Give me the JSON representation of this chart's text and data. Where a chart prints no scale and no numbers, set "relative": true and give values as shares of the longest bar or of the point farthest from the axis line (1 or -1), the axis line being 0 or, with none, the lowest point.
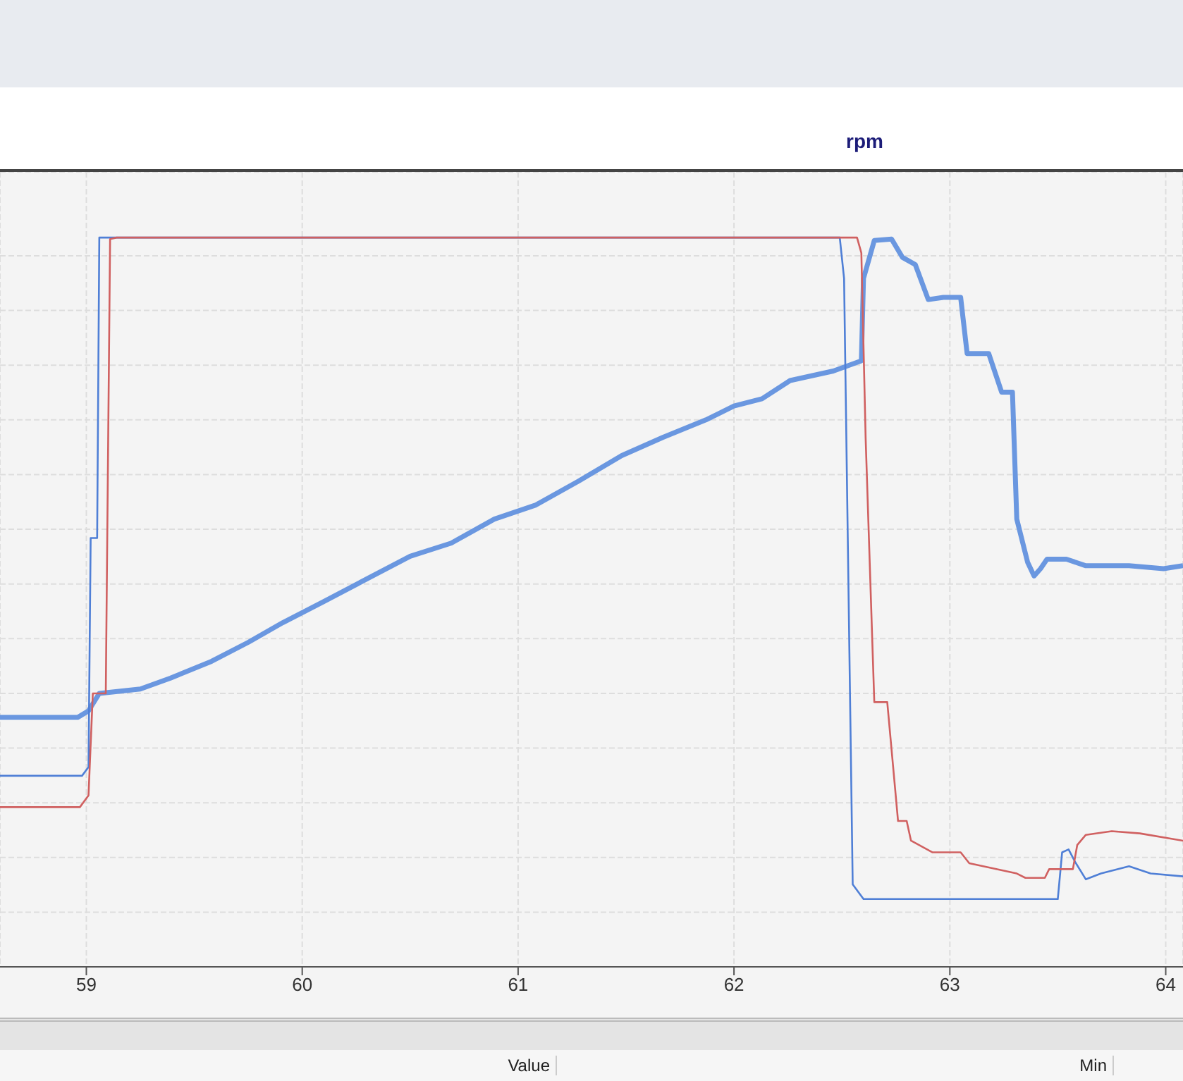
{
  "chart_data": {
    "type": "line",
    "title": "rpm",
    "relative": true,
    "xlim": [
      58.6,
      64.08
    ],
    "xticks": [
      59,
      60,
      61,
      62,
      63,
      64
    ],
    "grid": true,
    "legend": false,
    "marker": "none",
    "line_style": "solid",
    "annotations": [
      "Value",
      "Min"
    ],
    "series": [
      {
        "color": "#6a97e0",
        "x": [
          58.6,
          58.96,
          59.01,
          59.06,
          59.25,
          59.39,
          59.58,
          59.75,
          59.91,
          60.1,
          60.3,
          60.5,
          60.69,
          60.89,
          61.08,
          61.28,
          61.48,
          61.67,
          61.87,
          62.0,
          62.13,
          62.26,
          62.46,
          62.59,
          62.6,
          62.65,
          62.73,
          62.78,
          62.84,
          62.9,
          62.97,
          63.05,
          63.08,
          63.18,
          63.24,
          63.29,
          63.31,
          63.36,
          63.39,
          63.42,
          63.45,
          63.54,
          63.63,
          63.83,
          63.99,
          64.08
        ],
        "values": [
          0.342,
          0.342,
          0.351,
          0.375,
          0.381,
          0.396,
          0.419,
          0.445,
          0.472,
          0.501,
          0.532,
          0.563,
          0.581,
          0.614,
          0.633,
          0.666,
          0.701,
          0.726,
          0.75,
          0.769,
          0.779,
          0.804,
          0.817,
          0.831,
          0.944,
          0.996,
          0.998,
          0.973,
          0.963,
          0.915,
          0.918,
          0.918,
          0.841,
          0.841,
          0.788,
          0.788,
          0.614,
          0.555,
          0.536,
          0.546,
          0.559,
          0.559,
          0.55,
          0.55,
          0.546,
          0.55
        ]
      },
      {
        "color": "#4f7fd6",
        "x": [
          58.6,
          58.98,
          59.01,
          59.02,
          59.05,
          59.06,
          59.1,
          62.49,
          62.51,
          62.55,
          62.6,
          63.5,
          63.52,
          63.55,
          63.58,
          63.63,
          63.7,
          63.83,
          63.93,
          64.08
        ],
        "values": [
          0.262,
          0.262,
          0.274,
          0.588,
          0.588,
          1.0,
          1.0,
          1.0,
          0.944,
          0.113,
          0.093,
          0.093,
          0.157,
          0.161,
          0.144,
          0.12,
          0.128,
          0.138,
          0.128,
          0.124
        ]
      },
      {
        "color": "#d06060",
        "x": [
          58.6,
          58.97,
          59.01,
          59.03,
          59.09,
          59.11,
          59.14,
          62.52,
          62.57,
          62.59,
          62.61,
          62.65,
          62.71,
          62.76,
          62.8,
          62.82,
          62.92,
          63.05,
          63.09,
          63.31,
          63.35,
          63.44,
          63.46,
          63.57,
          63.59,
          63.63,
          63.75,
          63.88,
          64.08
        ],
        "values": [
          0.219,
          0.219,
          0.235,
          0.375,
          0.375,
          0.998,
          1.0,
          1.0,
          1.0,
          0.979,
          0.724,
          0.363,
          0.363,
          0.2,
          0.2,
          0.173,
          0.157,
          0.157,
          0.142,
          0.128,
          0.122,
          0.122,
          0.134,
          0.134,
          0.167,
          0.181,
          0.186,
          0.183,
          0.173
        ]
      }
    ]
  }
}
